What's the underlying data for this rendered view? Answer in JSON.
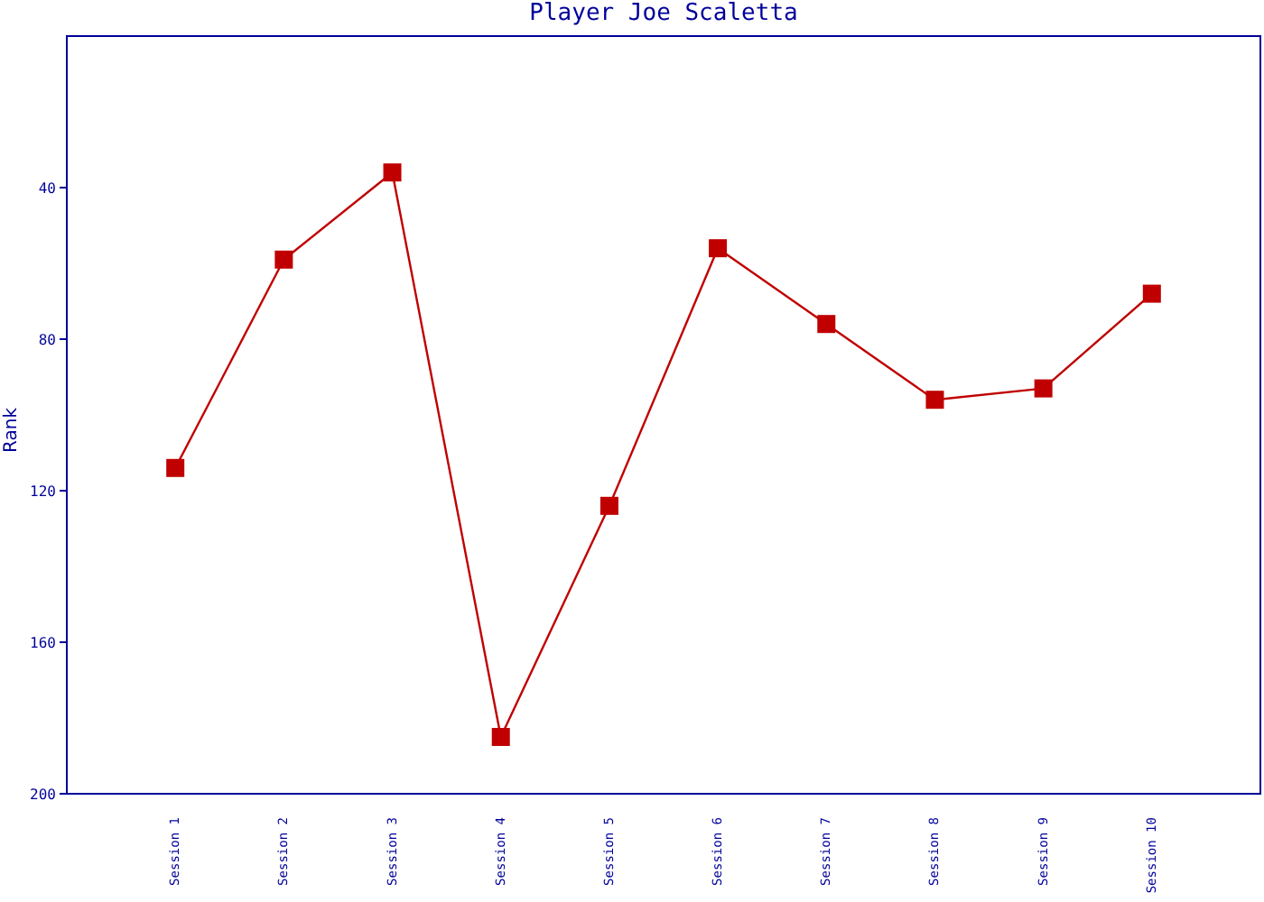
{
  "chart_data": {
    "type": "line",
    "title": "Player Joe Scaletta",
    "ylabel": "Rank",
    "categories": [
      "Session 1",
      "Session 2",
      "Session 3",
      "Session 4",
      "Session 5",
      "Session 6",
      "Session 7",
      "Session 8",
      "Session 9",
      "Session 10"
    ],
    "series": [
      {
        "color": "#c00000",
        "values": [
          114,
          59,
          36,
          185,
          124,
          56,
          76,
          96,
          93,
          68
        ]
      }
    ],
    "ylim": [
      200,
      0
    ],
    "yticks": [
      40,
      80,
      120,
      160,
      200
    ],
    "marker": "square",
    "line_style": "solid",
    "grid": false
  }
}
